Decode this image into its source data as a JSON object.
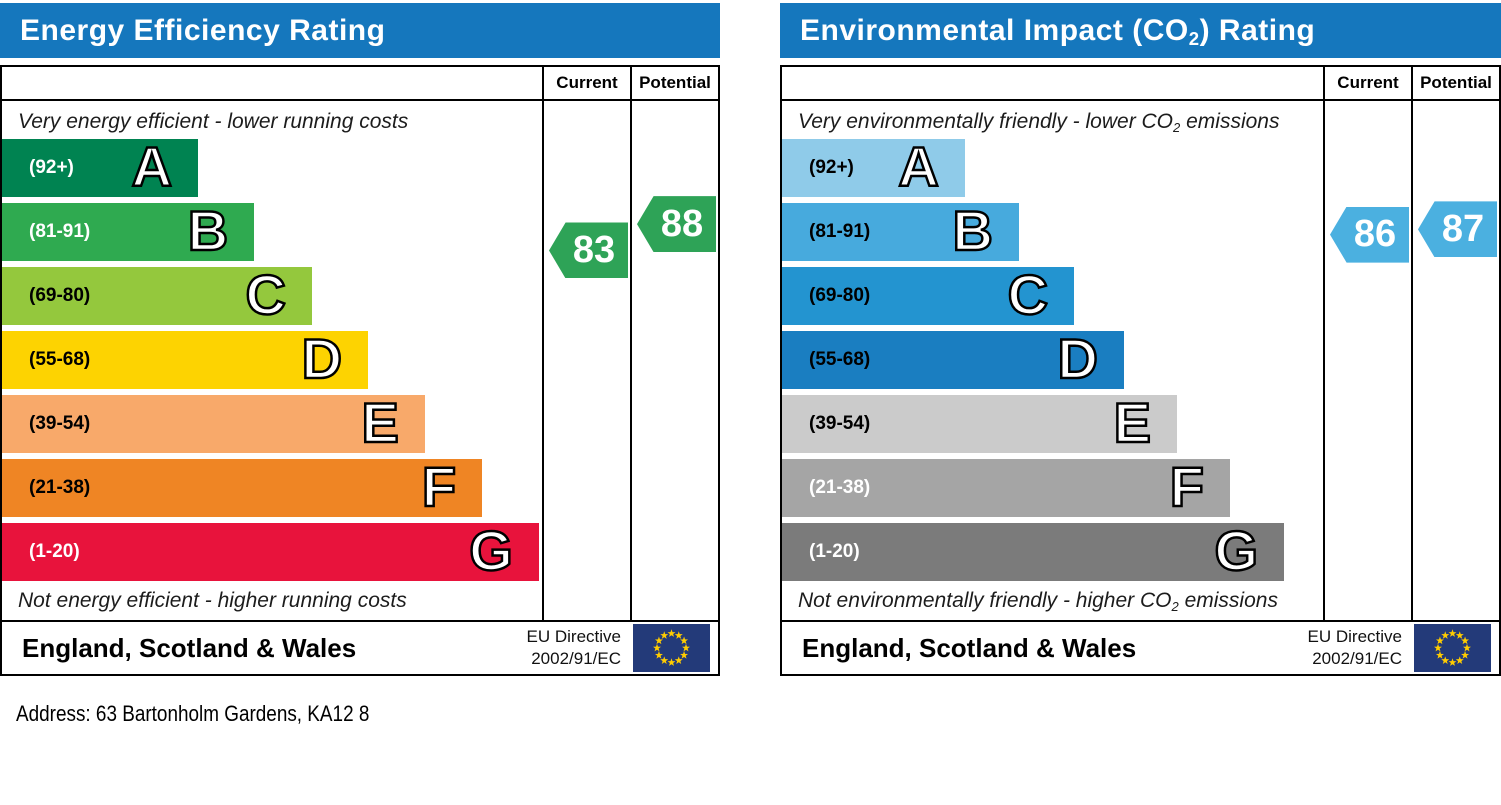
{
  "address": "Address: 63 Bartonholm Gardens, KA12 8",
  "colors": {
    "header_bg": "#1577bd",
    "table_border": "#000000",
    "flag_bg": "#233a79",
    "flag_star": "#ffcc00",
    "energy_arrow": "#2ea357",
    "co2_arrow": "#4bb0e0"
  },
  "panels": [
    {
      "name": "energy-efficiency",
      "title": {
        "pre": "Energy Efficiency Rating",
        "sub": "",
        "post": ""
      },
      "col_current": "Current",
      "col_potential": "Potential",
      "caption_top": {
        "pre": "Very energy efficient - lower running costs",
        "sub": "",
        "post": ""
      },
      "caption_bottom": {
        "pre": "Not energy efficient - higher running costs",
        "sub": "",
        "post": ""
      },
      "bands": [
        {
          "letter": "A",
          "range": "(92+)",
          "color": "#008351",
          "label_color": "#ffffff",
          "width_pct": 36.3
        },
        {
          "letter": "B",
          "range": "(81-91)",
          "color": "#2faa50",
          "label_color": "#ffffff",
          "width_pct": 46.7
        },
        {
          "letter": "C",
          "range": "(69-80)",
          "color": "#94c83d",
          "label_color": "#000000",
          "width_pct": 57.4
        },
        {
          "letter": "D",
          "range": "(55-68)",
          "color": "#fdd301",
          "label_color": "#000000",
          "width_pct": 67.8
        },
        {
          "letter": "E",
          "range": "(39-54)",
          "color": "#f8a96a",
          "label_color": "#000000",
          "width_pct": 78.3
        },
        {
          "letter": "F",
          "range": "(21-38)",
          "color": "#ef8524",
          "label_color": "#000000",
          "width_pct": 88.9
        },
        {
          "letter": "G",
          "range": "(1-20)",
          "color": "#e8133c",
          "label_color": "#ffffff",
          "width_pct": 99.4
        }
      ],
      "arrows": {
        "current": {
          "value": 83,
          "band": "B",
          "color": "#2ea357"
        },
        "potential": {
          "value": 88,
          "band": "B",
          "color": "#2ea357"
        }
      },
      "footer": {
        "region": "England, Scotland & Wales",
        "directive_line1": "EU Directive",
        "directive_line2": "2002/91/EC"
      }
    },
    {
      "name": "environmental-impact-co2",
      "title": {
        "pre": "Environmental Impact (CO",
        "sub": "2",
        "post": ") Rating"
      },
      "col_current": "Current",
      "col_potential": "Potential",
      "caption_top": {
        "pre": "Very environmentally friendly - lower CO",
        "sub": "2",
        "post": " emissions"
      },
      "caption_bottom": {
        "pre": "Not environmentally friendly - higher CO",
        "sub": "2",
        "post": " emissions"
      },
      "bands": [
        {
          "letter": "A",
          "range": "(92+)",
          "color": "#8fcbe9",
          "label_color": "#000000",
          "width_pct": 33.8
        },
        {
          "letter": "B",
          "range": "(81-91)",
          "color": "#47aadd",
          "label_color": "#000000",
          "width_pct": 43.8
        },
        {
          "letter": "C",
          "range": "(69-80)",
          "color": "#2394d0",
          "label_color": "#000000",
          "width_pct": 54.0
        },
        {
          "letter": "D",
          "range": "(55-68)",
          "color": "#1a7ec1",
          "label_color": "#000000",
          "width_pct": 63.2
        },
        {
          "letter": "E",
          "range": "(39-54)",
          "color": "#cbcbcb",
          "label_color": "#000000",
          "width_pct": 73.0
        },
        {
          "letter": "F",
          "range": "(21-38)",
          "color": "#a5a5a5",
          "label_color": "#ffffff",
          "width_pct": 82.8
        },
        {
          "letter": "G",
          "range": "(1-20)",
          "color": "#7b7b7b",
          "label_color": "#ffffff",
          "width_pct": 92.8
        }
      ],
      "arrows": {
        "current": {
          "value": 86,
          "band": "B",
          "color": "#4bb0e0"
        },
        "potential": {
          "value": 87,
          "band": "B",
          "color": "#4bb0e0"
        }
      },
      "footer": {
        "region": "England, Scotland & Wales",
        "directive_line1": "EU Directive",
        "directive_line2": "2002/91/EC"
      }
    }
  ],
  "chart_data": [
    {
      "type": "bar",
      "title": "Energy Efficiency Rating",
      "categories": [
        "A (92+)",
        "B (81-91)",
        "C (69-80)",
        "D (55-68)",
        "E (39-54)",
        "F (21-38)",
        "G (1-20)"
      ],
      "band_bar_lengths_pct": [
        36.3,
        46.7,
        57.4,
        67.8,
        78.3,
        88.9,
        99.4
      ],
      "series": [
        {
          "name": "Current",
          "values": [
            83
          ],
          "band": "B"
        },
        {
          "name": "Potential",
          "values": [
            88
          ],
          "band": "B"
        }
      ],
      "score_range": [
        1,
        100
      ],
      "annotations": {
        "top": "Very energy efficient - lower running costs",
        "bottom": "Not energy efficient - higher running costs",
        "region": "England, Scotland & Wales",
        "directive": "EU Directive 2002/91/EC"
      }
    },
    {
      "type": "bar",
      "title": "Environmental Impact (CO2) Rating",
      "categories": [
        "A (92+)",
        "B (81-91)",
        "C (69-80)",
        "D (55-68)",
        "E (39-54)",
        "F (21-38)",
        "G (1-20)"
      ],
      "band_bar_lengths_pct": [
        33.8,
        43.8,
        54.0,
        63.2,
        73.0,
        82.8,
        92.8
      ],
      "series": [
        {
          "name": "Current",
          "values": [
            86
          ],
          "band": "B"
        },
        {
          "name": "Potential",
          "values": [
            87
          ],
          "band": "B"
        }
      ],
      "score_range": [
        1,
        100
      ],
      "annotations": {
        "top": "Very environmentally friendly - lower CO2 emissions",
        "bottom": "Not environmentally friendly - higher CO2 emissions",
        "region": "England, Scotland & Wales",
        "directive": "EU Directive 2002/91/EC"
      }
    }
  ]
}
